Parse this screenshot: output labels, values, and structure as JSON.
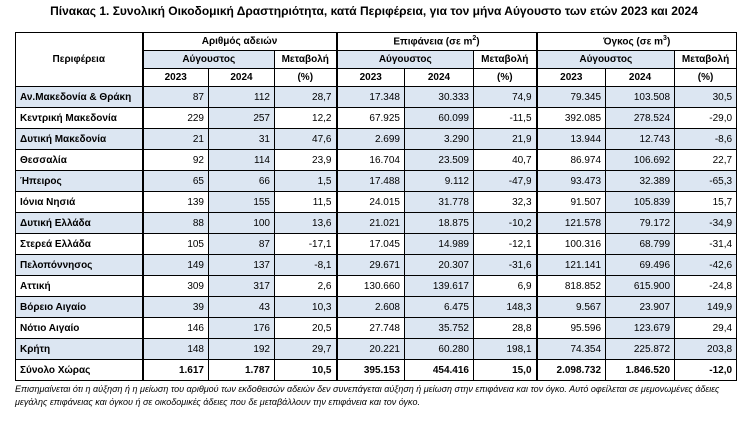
{
  "title": "Πίνακας 1. Συνολική Οικοδομική Δραστηριότητα, κατά  Περιφέρεια, για τον μήνα Αύγουστο των ετών 2023 και 2024",
  "headers": {
    "region": "Περιφέρεια",
    "group1": "Αριθμός αδειών",
    "group2": "Επιφάνεια (σε m",
    "group2_sup": "2",
    "group2_end": ")",
    "group3": "Όγκος (σε m",
    "group3_sup": "3",
    "group3_end": ")",
    "month": "Αύγουστος",
    "change": "Μεταβολή",
    "pct": "(%)",
    "year1": "2023",
    "year2": "2024"
  },
  "rows": [
    {
      "region": "Αν.Μακεδονία & Θράκη",
      "v": [
        "87",
        "112",
        "28,7",
        "17.348",
        "30.333",
        "74,9",
        "79.345",
        "103.508",
        "30,5"
      ]
    },
    {
      "region": "Κεντρική Μακεδονία",
      "v": [
        "229",
        "257",
        "12,2",
        "67.925",
        "60.099",
        "-11,5",
        "392.085",
        "278.524",
        "-29,0"
      ]
    },
    {
      "region": "Δυτική Μακεδονία",
      "v": [
        "21",
        "31",
        "47,6",
        "2.699",
        "3.290",
        "21,9",
        "13.944",
        "12.743",
        "-8,6"
      ]
    },
    {
      "region": "Θεσσαλία",
      "v": [
        "92",
        "114",
        "23,9",
        "16.704",
        "23.509",
        "40,7",
        "86.974",
        "106.692",
        "22,7"
      ]
    },
    {
      "region": "Ήπειρος",
      "v": [
        "65",
        "66",
        "1,5",
        "17.488",
        "9.112",
        "-47,9",
        "93.473",
        "32.389",
        "-65,3"
      ]
    },
    {
      "region": "Ιόνια Νησιά",
      "v": [
        "139",
        "155",
        "11,5",
        "24.015",
        "31.778",
        "32,3",
        "91.507",
        "105.839",
        "15,7"
      ]
    },
    {
      "region": "Δυτική Ελλάδα",
      "v": [
        "88",
        "100",
        "13,6",
        "21.021",
        "18.875",
        "-10,2",
        "121.578",
        "79.172",
        "-34,9"
      ]
    },
    {
      "region": "Στερεά Ελλάδα",
      "v": [
        "105",
        "87",
        "-17,1",
        "17.045",
        "14.989",
        "-12,1",
        "100.316",
        "68.799",
        "-31,4"
      ]
    },
    {
      "region": "Πελοπόννησος",
      "v": [
        "149",
        "137",
        "-8,1",
        "29.671",
        "20.307",
        "-31,6",
        "121.141",
        "69.496",
        "-42,6"
      ]
    },
    {
      "region": "Αττική",
      "v": [
        "309",
        "317",
        "2,6",
        "130.660",
        "139.617",
        "6,9",
        "818.852",
        "615.900",
        "-24,8"
      ]
    },
    {
      "region": "Βόρειο Αιγαίο",
      "v": [
        "39",
        "43",
        "10,3",
        "2.608",
        "6.475",
        "148,3",
        "9.567",
        "23.907",
        "149,9"
      ]
    },
    {
      "region": "Νότιο Αιγαίο",
      "v": [
        "146",
        "176",
        "20,5",
        "27.748",
        "35.752",
        "28,8",
        "95.596",
        "123.679",
        "29,4"
      ]
    },
    {
      "region": "Κρήτη",
      "v": [
        "148",
        "192",
        "29,7",
        "20.221",
        "60.280",
        "198,1",
        "74.354",
        "225.872",
        "203,8"
      ]
    },
    {
      "region": "Σύνολο Χώρας",
      "v": [
        "1.617",
        "1.787",
        "10,5",
        "395.153",
        "454.416",
        "15,0",
        "2.098.732",
        "1.846.520",
        "-12,0"
      ]
    }
  ],
  "note": "Επισημαίνεται ότι η αύξηση ή η μείωση του αριθμού των εκδοθεισών αδειών δεν συνεπάγεται αύξηση ή μείωση στην επιφάνεια και τον όγκο. Αυτό οφείλεται σε μεμονωμένες άδειες μεγάλης επιφάνειας και όγκου ή σε οικοδομικές άδειες που δε μεταβάλλουν την επιφάνεια και τον όγκο."
}
